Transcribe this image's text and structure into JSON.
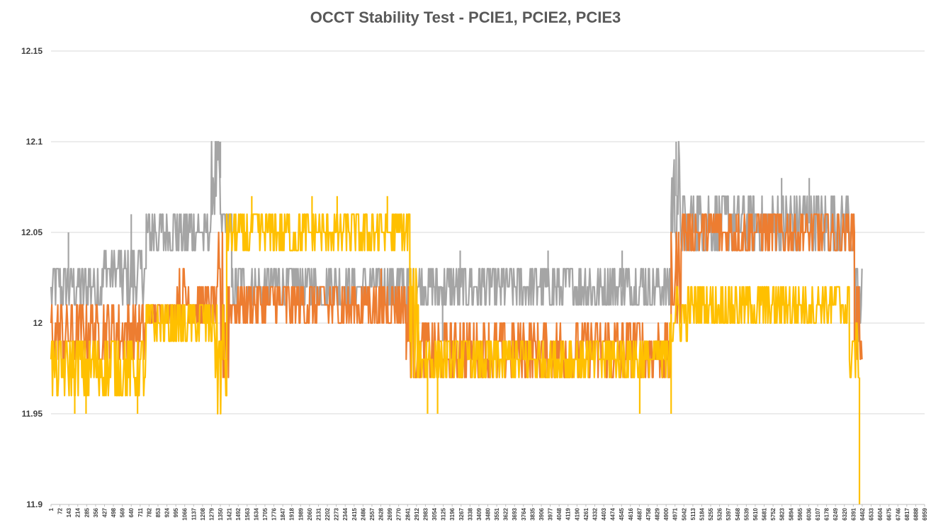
{
  "chart_data": {
    "type": "line",
    "title": "OCCT Stability Test - PCIE1, PCIE2, PCIE3",
    "xlabel": "",
    "ylabel": "",
    "ylim": [
      11.9,
      12.15
    ],
    "yticks": [
      11.9,
      11.95,
      12,
      12.05,
      12.1,
      12.15
    ],
    "ytick_labels": [
      "11.9",
      "11.95",
      "12",
      "12.05",
      "12.1",
      "12.15"
    ],
    "xlim": [
      1,
      6959
    ],
    "xticks": [
      1,
      72,
      143,
      214,
      285,
      356,
      427,
      498,
      569,
      640,
      711,
      782,
      853,
      924,
      995,
      1066,
      1137,
      1208,
      1279,
      1350,
      1421,
      1492,
      1563,
      1634,
      1705,
      1776,
      1847,
      1918,
      1989,
      2060,
      2131,
      2202,
      2273,
      2344,
      2415,
      2486,
      2557,
      2628,
      2699,
      2770,
      2841,
      2912,
      2983,
      3054,
      3125,
      3196,
      3267,
      3338,
      3409,
      3480,
      3551,
      3622,
      3693,
      3764,
      3835,
      3906,
      3977,
      4048,
      4119,
      4190,
      4261,
      4332,
      4403,
      4474,
      4545,
      4616,
      4687,
      4758,
      4829,
      4900,
      4971,
      5042,
      5113,
      5184,
      5255,
      5326,
      5397,
      5468,
      5539,
      5610,
      5681,
      5752,
      5823,
      5894,
      5965,
      6036,
      6107,
      6178,
      6249,
      6320,
      6391,
      6462,
      6533,
      6604,
      6675,
      6746,
      6817,
      6888,
      6959
    ],
    "xtick_labels": [
      "1",
      "72",
      "143",
      "214",
      "285",
      "356",
      "427",
      "498",
      "569",
      "640",
      "711",
      "782",
      "853",
      "924",
      "995",
      "1066",
      "1137",
      "1208",
      "1279",
      "1350",
      "1421",
      "1492",
      "1563",
      "1634",
      "1705",
      "1776",
      "1847",
      "1918",
      "1989",
      "2060",
      "2131",
      "2202",
      "2273",
      "2344",
      "2415",
      "2486",
      "2557",
      "2628",
      "2699",
      "2770",
      "2841",
      "2912",
      "2983",
      "3054",
      "3125",
      "3196",
      "3267",
      "3338",
      "3409",
      "3480",
      "3551",
      "3622",
      "3693",
      "3764",
      "3835",
      "3906",
      "3977",
      "4048",
      "4119",
      "4190",
      "4261",
      "4332",
      "4403",
      "4474",
      "4545",
      "4616",
      "4687",
      "4758",
      "4829",
      "4900",
      "4971",
      "5042",
      "5113",
      "5184",
      "5255",
      "5326",
      "5397",
      "5468",
      "5539",
      "5610",
      "5681",
      "5752",
      "5823",
      "5894",
      "5965",
      "6036",
      "6107",
      "6178",
      "6249",
      "6320",
      "6391",
      "6462",
      "6533",
      "6604",
      "6675",
      "6746",
      "6817",
      "6888",
      "6959"
    ],
    "grid": true,
    "legend": "none",
    "series": [
      {
        "color": "#a5a5a5",
        "segments": [
          {
            "x0": 1,
            "x1": 420,
            "lo": 12.01,
            "hi": 12.03
          },
          {
            "x0": 420,
            "x1": 560,
            "lo": 12.02,
            "hi": 12.04
          },
          {
            "x0": 560,
            "x1": 760,
            "lo": 12.01,
            "hi": 12.04
          },
          {
            "x0": 760,
            "x1": 1000,
            "lo": 12.04,
            "hi": 12.06
          },
          {
            "x0": 1000,
            "x1": 1280,
            "lo": 12.04,
            "hi": 12.06
          },
          {
            "x0": 1280,
            "x1": 1350,
            "lo": 12.06,
            "hi": 12.1
          },
          {
            "x0": 1350,
            "x1": 1440,
            "lo": 12.05,
            "hi": 12.06
          },
          {
            "x0": 1440,
            "x1": 2820,
            "lo": 12.01,
            "hi": 12.03
          },
          {
            "x0": 2820,
            "x1": 2912,
            "lo": 12.0,
            "hi": 12.03
          },
          {
            "x0": 2912,
            "x1": 4940,
            "lo": 12.01,
            "hi": 12.03
          },
          {
            "x0": 4940,
            "x1": 5010,
            "lo": 12.04,
            "hi": 12.1
          },
          {
            "x0": 5010,
            "x1": 6400,
            "lo": 12.04,
            "hi": 12.07
          },
          {
            "x0": 6400,
            "x1": 6462,
            "lo": 11.98,
            "hi": 12.03
          }
        ],
        "spikes": [
          {
            "x": 140,
            "y": 12.05
          },
          {
            "x": 640,
            "y": 12.06
          },
          {
            "x": 1345,
            "y": 12.1
          },
          {
            "x": 1350,
            "y": 12.1
          },
          {
            "x": 4980,
            "y": 12.1
          },
          {
            "x": 5820,
            "y": 12.08
          },
          {
            "x": 6040,
            "y": 12.08
          },
          {
            "x": 3260,
            "y": 12.04
          },
          {
            "x": 3960,
            "y": 12.04
          },
          {
            "x": 4550,
            "y": 12.04
          },
          {
            "x": 240,
            "y": 12.0
          },
          {
            "x": 3120,
            "y": 11.99
          }
        ]
      },
      {
        "color": "#ed7d31",
        "segments": [
          {
            "x0": 1,
            "x1": 760,
            "lo": 11.98,
            "hi": 12.01
          },
          {
            "x0": 760,
            "x1": 1000,
            "lo": 12.0,
            "hi": 12.01
          },
          {
            "x0": 1000,
            "x1": 1110,
            "lo": 12.0,
            "hi": 12.03
          },
          {
            "x0": 1110,
            "x1": 1330,
            "lo": 12.0,
            "hi": 12.02
          },
          {
            "x0": 1330,
            "x1": 1420,
            "lo": 11.96,
            "hi": 12.05
          },
          {
            "x0": 1420,
            "x1": 2830,
            "lo": 12.0,
            "hi": 12.02
          },
          {
            "x0": 2830,
            "x1": 2912,
            "lo": 11.97,
            "hi": 12.02
          },
          {
            "x0": 2912,
            "x1": 4940,
            "lo": 11.97,
            "hi": 12.0
          },
          {
            "x0": 4940,
            "x1": 5020,
            "lo": 12.0,
            "hi": 12.05
          },
          {
            "x0": 5020,
            "x1": 6400,
            "lo": 12.04,
            "hi": 12.06
          },
          {
            "x0": 6400,
            "x1": 6462,
            "lo": 11.98,
            "hi": 12.02
          }
        ],
        "spikes": [
          {
            "x": 2630,
            "y": 12.03
          },
          {
            "x": 5990,
            "y": 12.06
          },
          {
            "x": 5460,
            "y": 12.06
          }
        ]
      },
      {
        "color": "#ffc000",
        "segments": [
          {
            "x0": 1,
            "x1": 760,
            "lo": 11.96,
            "hi": 11.99
          },
          {
            "x0": 760,
            "x1": 1310,
            "lo": 11.99,
            "hi": 12.01
          },
          {
            "x0": 1310,
            "x1": 1400,
            "lo": 11.95,
            "hi": 12.01
          },
          {
            "x0": 1400,
            "x1": 2860,
            "lo": 12.04,
            "hi": 12.06
          },
          {
            "x0": 2860,
            "x1": 2930,
            "lo": 11.97,
            "hi": 12.03
          },
          {
            "x0": 2930,
            "x1": 4930,
            "lo": 11.97,
            "hi": 11.99
          },
          {
            "x0": 4930,
            "x1": 5080,
            "lo": 11.99,
            "hi": 12.02
          },
          {
            "x0": 5080,
            "x1": 6360,
            "lo": 12.0,
            "hi": 12.02
          },
          {
            "x0": 6360,
            "x1": 6440,
            "lo": 11.97,
            "hi": 12.0
          }
        ],
        "spikes": [
          {
            "x": 1600,
            "y": 12.07
          },
          {
            "x": 2080,
            "y": 12.07
          },
          {
            "x": 2280,
            "y": 12.07
          },
          {
            "x": 2680,
            "y": 12.07
          },
          {
            "x": 280,
            "y": 11.95
          },
          {
            "x": 190,
            "y": 11.95
          },
          {
            "x": 690,
            "y": 11.95
          },
          {
            "x": 3000,
            "y": 11.95
          },
          {
            "x": 3080,
            "y": 11.95
          },
          {
            "x": 4690,
            "y": 11.95
          },
          {
            "x": 4940,
            "y": 11.95
          }
        ],
        "end_drop": {
          "x": 6440,
          "y": 11.9
        }
      }
    ]
  }
}
